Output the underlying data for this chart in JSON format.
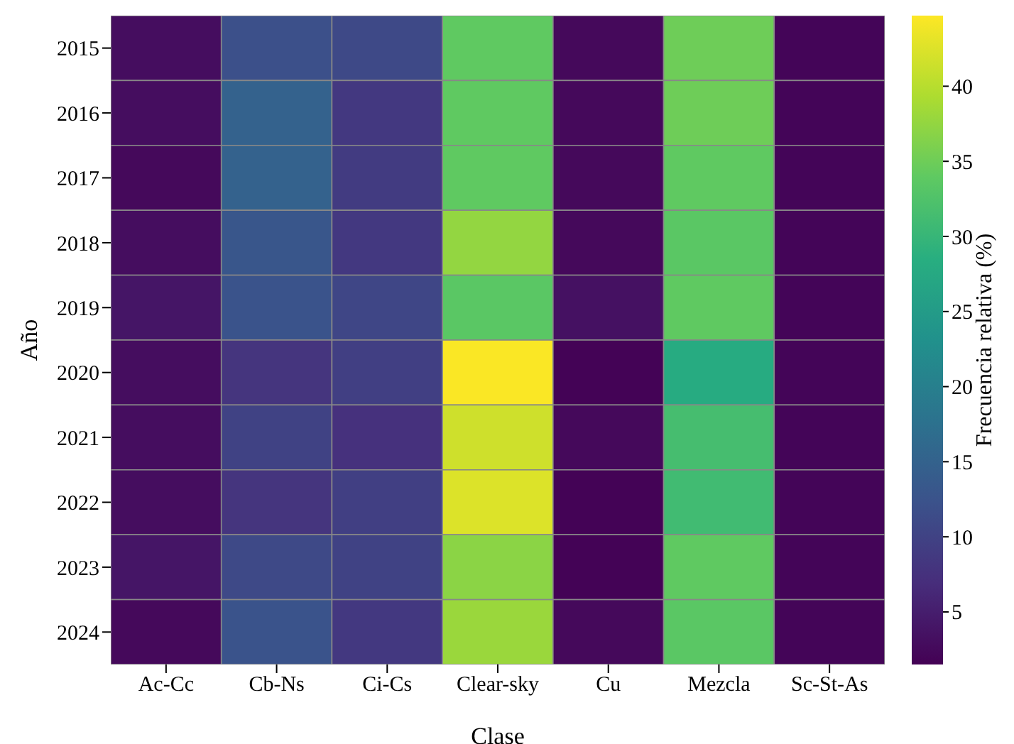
{
  "chart_data": {
    "type": "heatmap",
    "xlabel": "Clase",
    "ylabel": "Año",
    "clabel": "Frecuencia relativa (%)",
    "categories": [
      "Ac-Cc",
      "Cb-Ns",
      "Ci-Cs",
      "Clear-sky",
      "Cu",
      "Mezcla",
      "Sc-St-As"
    ],
    "y_categories": [
      "2015",
      "2016",
      "2017",
      "2018",
      "2019",
      "2020",
      "2021",
      "2022",
      "2023",
      "2024"
    ],
    "cells": [
      [
        3,
        12,
        11,
        34,
        2.5,
        35,
        2
      ],
      [
        3,
        15,
        8.5,
        34,
        2.5,
        35,
        2
      ],
      [
        2.5,
        15,
        9,
        34,
        2.5,
        34,
        2
      ],
      [
        3,
        13,
        8.5,
        37.5,
        2.5,
        33.5,
        2
      ],
      [
        4,
        12.5,
        10.5,
        33.5,
        3.5,
        34,
        2
      ],
      [
        3,
        8,
        9.5,
        44.5,
        1.8,
        28,
        2
      ],
      [
        3,
        10,
        7.5,
        41.5,
        2.5,
        31.5,
        2
      ],
      [
        3,
        8,
        9.5,
        42.5,
        1.8,
        31,
        2
      ],
      [
        4,
        11,
        10,
        37,
        1.8,
        34,
        2
      ],
      [
        2.5,
        12.5,
        8.5,
        38,
        2.5,
        33.5,
        2
      ]
    ],
    "clim": [
      1.5,
      44.7
    ],
    "cticks": [
      5,
      10,
      15,
      20,
      25,
      30,
      35,
      40
    ]
  }
}
